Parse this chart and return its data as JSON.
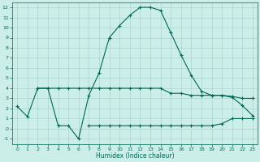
{
  "xlabel": "Humidex (Indice chaleur)",
  "background_color": "#cceee8",
  "grid_color": "#aad4ce",
  "line_color": "#006655",
  "x_main": [
    0,
    1,
    2,
    3,
    4,
    5,
    6,
    7,
    8,
    9,
    10,
    11,
    12,
    13,
    14,
    15,
    16,
    17,
    18,
    19,
    20,
    21,
    22,
    23
  ],
  "y_main": [
    2.2,
    1.2,
    4.0,
    4.0,
    0.3,
    0.3,
    -1.0,
    3.3,
    5.5,
    9.0,
    10.2,
    11.2,
    12.0,
    12.0,
    11.7,
    9.5,
    7.3,
    5.3,
    3.7,
    3.3,
    3.3,
    3.1,
    2.3,
    1.3
  ],
  "x_upper": [
    2,
    3,
    4,
    5,
    6,
    7,
    8,
    9,
    10,
    11,
    12,
    13,
    14,
    15,
    16,
    17,
    18,
    19,
    20,
    21,
    22,
    23
  ],
  "y_upper": [
    4.0,
    4.0,
    4.0,
    4.0,
    4.0,
    4.0,
    4.0,
    4.0,
    4.0,
    4.0,
    4.0,
    4.0,
    4.0,
    3.5,
    3.5,
    3.3,
    3.3,
    3.3,
    3.3,
    3.2,
    3.0,
    3.0
  ],
  "x_lower": [
    7,
    8,
    9,
    10,
    11,
    12,
    13,
    14,
    15,
    16,
    17,
    18,
    19,
    20,
    21,
    22,
    23
  ],
  "y_lower": [
    0.3,
    0.3,
    0.3,
    0.3,
    0.3,
    0.3,
    0.3,
    0.3,
    0.3,
    0.3,
    0.3,
    0.3,
    0.3,
    0.5,
    1.0,
    1.0,
    1.0
  ],
  "xlim": [
    -0.5,
    23.5
  ],
  "ylim": [
    -1.5,
    12.5
  ],
  "yticks": [
    -1,
    0,
    1,
    2,
    3,
    4,
    5,
    6,
    7,
    8,
    9,
    10,
    11,
    12
  ],
  "xticks": [
    0,
    1,
    2,
    3,
    4,
    5,
    6,
    7,
    8,
    9,
    10,
    11,
    12,
    13,
    14,
    15,
    16,
    17,
    18,
    19,
    20,
    21,
    22,
    23
  ]
}
